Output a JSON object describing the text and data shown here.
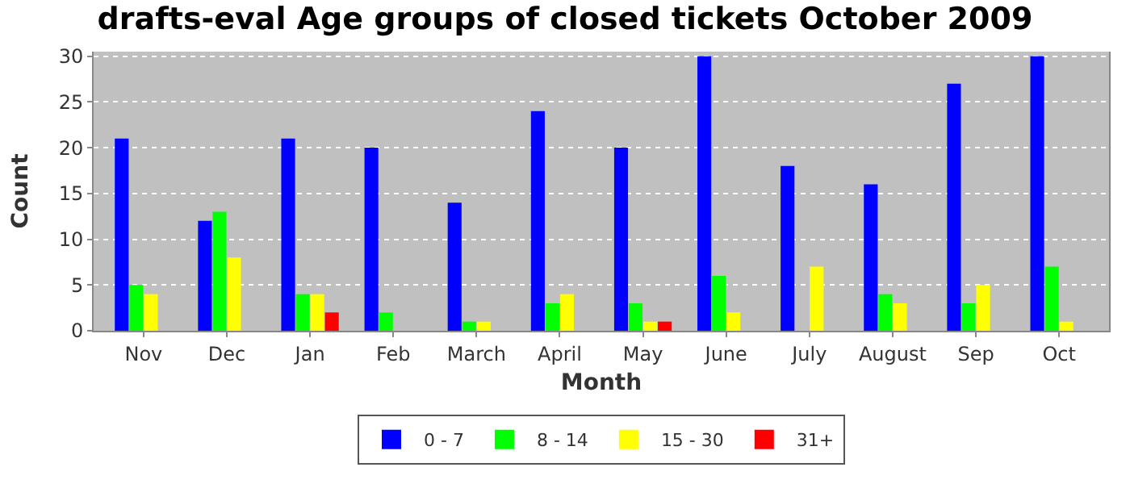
{
  "chart_data": {
    "type": "bar",
    "title": "drafts-eval Age groups of closed tickets October 2009",
    "xlabel": "Month",
    "ylabel": "Count",
    "categories": [
      "Nov",
      "Dec",
      "Jan",
      "Feb",
      "March",
      "April",
      "May",
      "June",
      "July",
      "August",
      "Sep",
      "Oct"
    ],
    "series": [
      {
        "name": "0 - 7",
        "color": "#0000ff",
        "values": [
          21,
          12,
          21,
          20,
          14,
          24,
          20,
          30,
          18,
          16,
          27,
          30
        ]
      },
      {
        "name": "8 - 14",
        "color": "#00ff00",
        "values": [
          5,
          13,
          4,
          2,
          1,
          3,
          3,
          6,
          0,
          4,
          3,
          7
        ]
      },
      {
        "name": "15 - 30",
        "color": "#ffff00",
        "values": [
          4,
          8,
          4,
          0,
          1,
          4,
          1,
          2,
          7,
          3,
          5,
          1
        ]
      },
      {
        "name": "31+",
        "color": "#ff0000",
        "values": [
          0,
          0,
          2,
          0,
          0,
          0,
          1,
          0,
          0,
          0,
          0,
          0
        ]
      }
    ],
    "ylim": [
      0,
      30.5
    ],
    "yticks": [
      0,
      5,
      10,
      15,
      20,
      25,
      30
    ],
    "grid": "y",
    "legend": "bottom"
  }
}
